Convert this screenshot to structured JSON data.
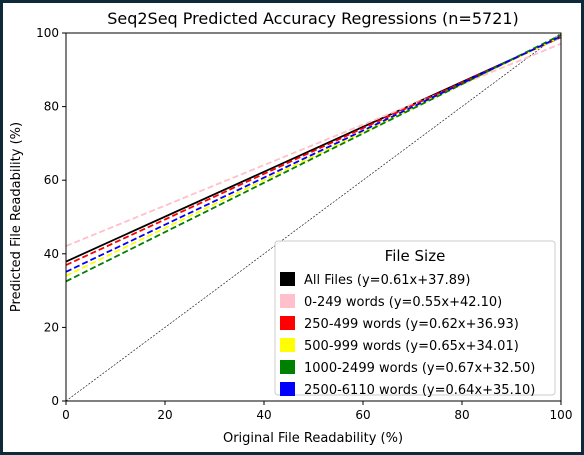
{
  "chart_data": {
    "type": "line",
    "title": "Seq2Seq Predicted Accuracy Regressions (n=5721)",
    "xlabel": "Original File Readability (%)",
    "ylabel": "Predicted File Readability (%)",
    "xlim": [
      0,
      100
    ],
    "ylim": [
      0,
      100
    ],
    "xticks": [
      0,
      20,
      40,
      60,
      80,
      100
    ],
    "yticks": [
      0,
      20,
      40,
      60,
      80,
      100
    ],
    "grid": false,
    "legend": {
      "title": "File Size",
      "placement": "lower-right"
    },
    "reference_line": {
      "slope": 1,
      "intercept": 0,
      "color": "#000000"
    },
    "series": [
      {
        "name": "All Files (y=0.61x+37.89)",
        "slope": 0.61,
        "intercept": 37.89,
        "color": "#000000",
        "style": "solid"
      },
      {
        "name": "0-249 words (y=0.55x+42.10)",
        "slope": 0.55,
        "intercept": 42.1,
        "color": "#ffc0cb",
        "style": "dashed"
      },
      {
        "name": "250-499 words (y=0.62x+36.93)",
        "slope": 0.62,
        "intercept": 36.93,
        "color": "#ff0000",
        "style": "dashed"
      },
      {
        "name": "500-999 words (y=0.65x+34.01)",
        "slope": 0.65,
        "intercept": 34.01,
        "color": "#ffff00",
        "style": "dashed"
      },
      {
        "name": "1000-2499 words (y=0.67x+32.50)",
        "slope": 0.67,
        "intercept": 32.5,
        "color": "#008000",
        "style": "dashed"
      },
      {
        "name": "2500-6110 words (y=0.64x+35.10)",
        "slope": 0.64,
        "intercept": 35.1,
        "color": "#0000ff",
        "style": "dashed"
      }
    ]
  }
}
